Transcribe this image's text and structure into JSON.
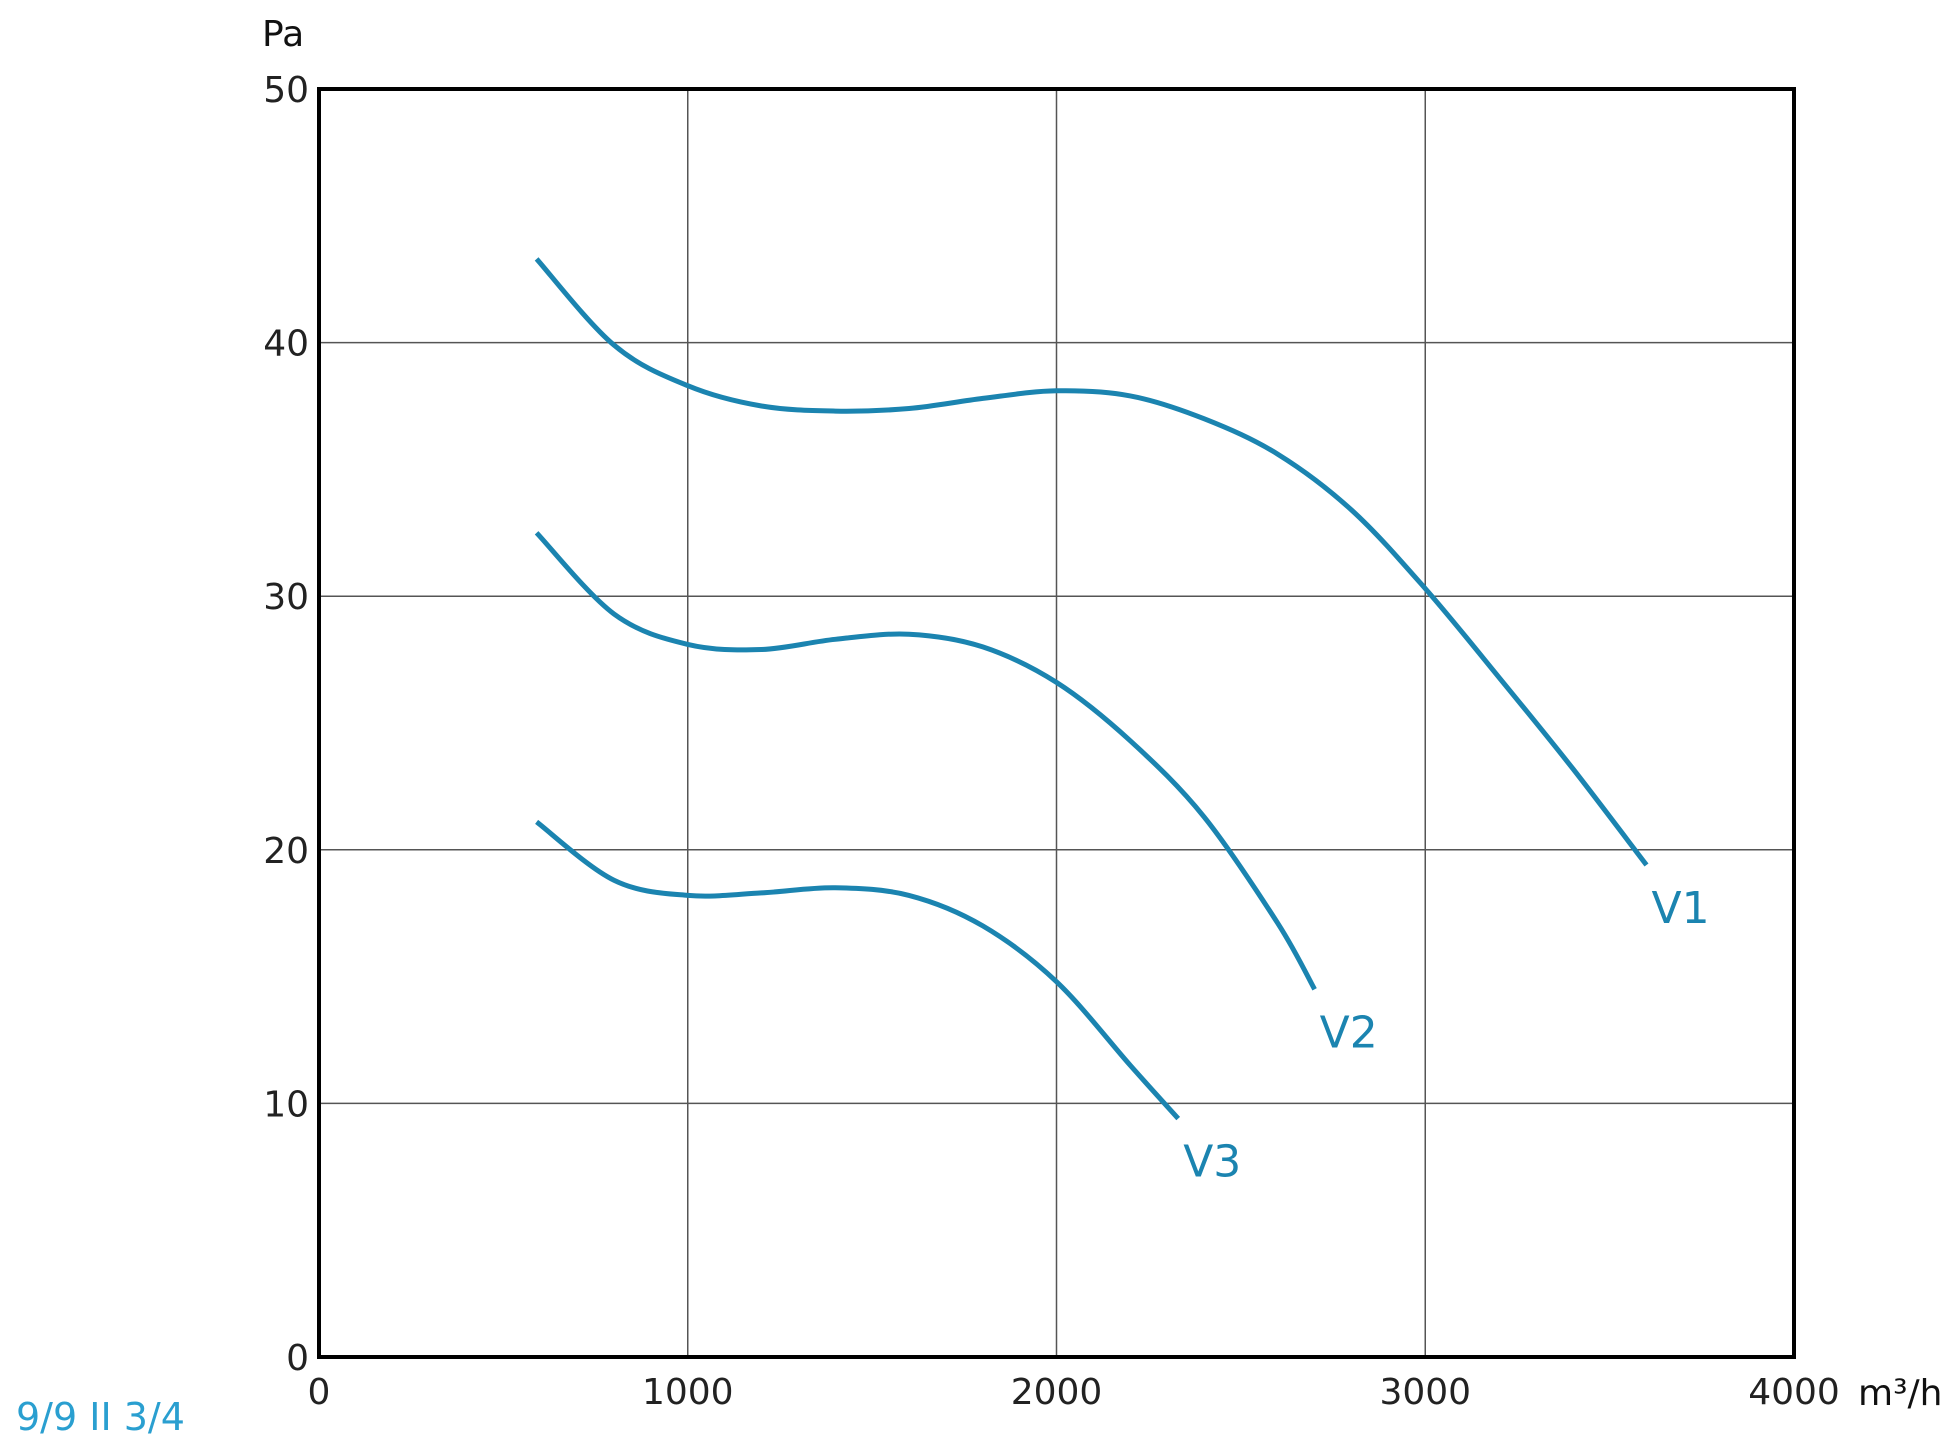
{
  "chart_data": {
    "type": "line",
    "ylabel": "Pa",
    "xlabel": "m³/h",
    "xlim": [
      0,
      4000
    ],
    "ylim": [
      0,
      50
    ],
    "x_ticks": [
      "0",
      "1000",
      "2000",
      "3000",
      "4000"
    ],
    "y_ticks": [
      "0",
      "10",
      "20",
      "30",
      "40",
      "50"
    ],
    "grid": true,
    "legend": "inline labels at curve ends",
    "series": [
      {
        "name": "V1",
        "color": "#1b84b0",
        "x": [
          590,
          800,
          1000,
          1200,
          1400,
          1600,
          1800,
          2000,
          2200,
          2400,
          2600,
          2800,
          3000,
          3200,
          3400,
          3600
        ],
        "y": [
          43.3,
          39.9,
          38.3,
          37.5,
          37.3,
          37.4,
          37.8,
          38.1,
          37.9,
          37.0,
          35.6,
          33.4,
          30.3,
          26.8,
          23.2,
          19.4
        ]
      },
      {
        "name": "V2",
        "color": "#1b84b0",
        "x": [
          590,
          800,
          1000,
          1200,
          1400,
          1600,
          1800,
          2000,
          2200,
          2400,
          2600,
          2700
        ],
        "y": [
          32.5,
          29.3,
          28.1,
          27.9,
          28.3,
          28.5,
          28.0,
          26.6,
          24.3,
          21.3,
          17.1,
          14.5
        ]
      },
      {
        "name": "V3",
        "color": "#1b84b0",
        "x": [
          590,
          800,
          1000,
          1200,
          1400,
          1600,
          1800,
          2000,
          2200,
          2330
        ],
        "y": [
          21.1,
          18.8,
          18.2,
          18.3,
          18.5,
          18.2,
          17.0,
          14.8,
          11.5,
          9.4
        ]
      }
    ]
  },
  "corner_label": "9/9 II 3/4",
  "colors": {
    "curve": "#1b84b0",
    "corner_label": "#2a9fd0",
    "grid": "#555555",
    "frame": "#000000"
  }
}
